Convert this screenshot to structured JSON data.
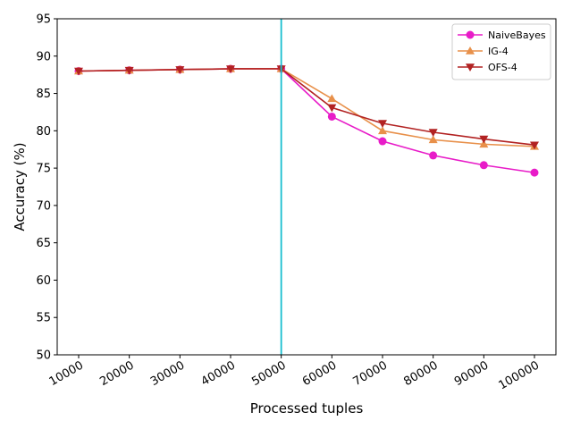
{
  "chart_data": {
    "type": "line",
    "title": "",
    "xlabel": "Processed tuples",
    "ylabel": "Accuracy (%)",
    "categories": [
      "10000",
      "20000",
      "30000",
      "40000",
      "50000",
      "60000",
      "70000",
      "80000",
      "90000",
      "100000"
    ],
    "ylim": [
      50,
      95
    ],
    "yticks": [
      50,
      55,
      60,
      65,
      70,
      75,
      80,
      85,
      90,
      95
    ],
    "vline_at": "50000",
    "vline_color": "#17becf",
    "grid": false,
    "legend_position": "top-right",
    "series": [
      {
        "name": "NaiveBayes",
        "color": "#e81cc8",
        "marker": "circle",
        "values": [
          88.0,
          88.1,
          88.2,
          88.3,
          88.3,
          81.9,
          78.6,
          76.7,
          75.4,
          74.4
        ]
      },
      {
        "name": "IG-4",
        "color": "#e8904a",
        "marker": "triangle-up",
        "values": [
          88.0,
          88.1,
          88.2,
          88.3,
          88.3,
          84.3,
          80.0,
          78.8,
          78.2,
          77.9
        ]
      },
      {
        "name": "OFS-4",
        "color": "#b22222",
        "marker": "triangle-down",
        "values": [
          88.0,
          88.1,
          88.2,
          88.3,
          88.3,
          83.1,
          81.0,
          79.8,
          78.9,
          78.1
        ]
      }
    ]
  }
}
